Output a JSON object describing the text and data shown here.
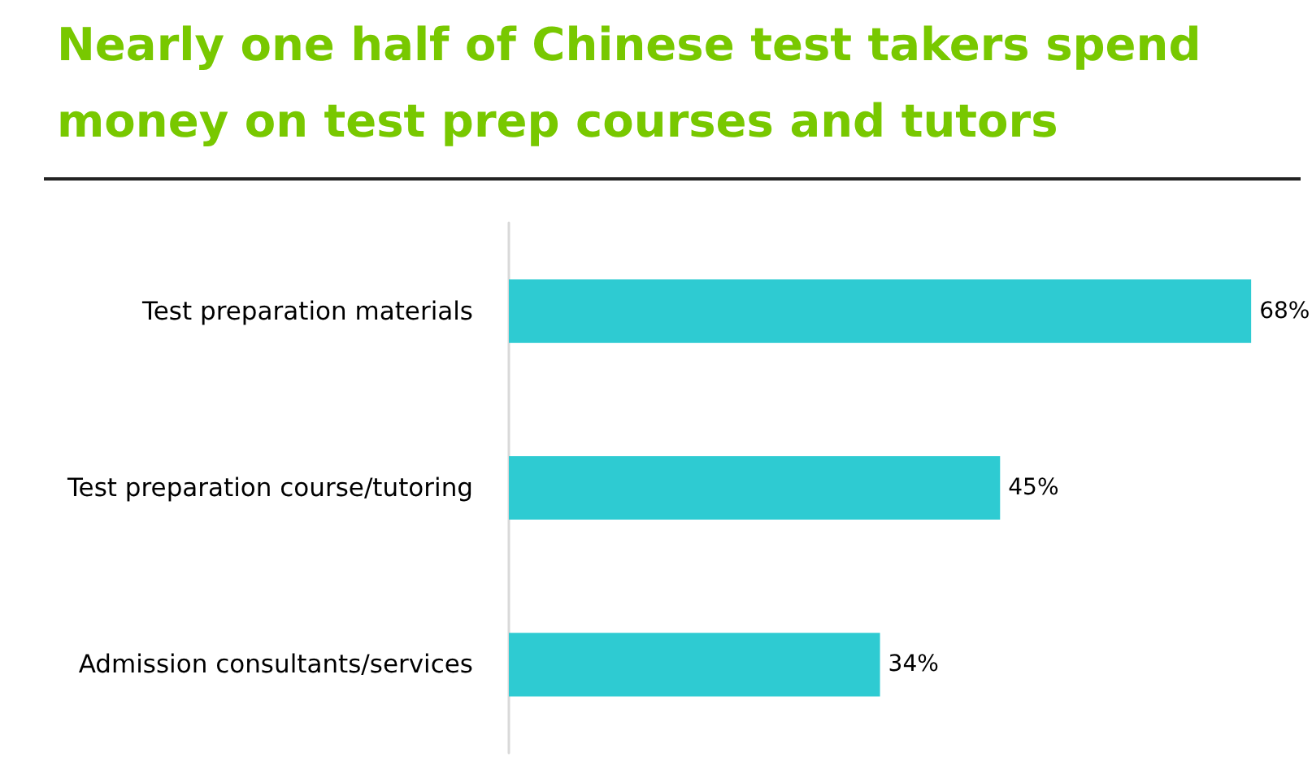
{
  "chart_data": {
    "type": "bar",
    "title": "Nearly one half of Chinese test takers spend money on test prep courses and tutors",
    "orientation": "horizontal",
    "categories": [
      "Test preparation materials",
      "Test preparation course/tutoring",
      "Admission consultants/services"
    ],
    "values": [
      68,
      45,
      34
    ],
    "color": "#2ecbd2",
    "value_labels": [
      "68%",
      "45%",
      "34%"
    ],
    "tick_labels": "y"
  }
}
